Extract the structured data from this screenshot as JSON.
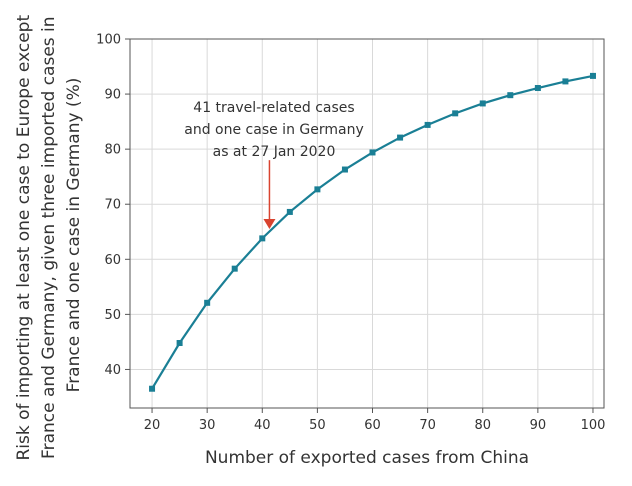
{
  "chart_data": {
    "type": "line",
    "title": "",
    "xlabel": "Number of exported cases from China",
    "ylabel_lines": [
      "Risk of importing at least one case to Europe except",
      "France and Germany, given three imported cases in",
      "France and one case in Germany (%)"
    ],
    "xlim": [
      16,
      102
    ],
    "ylim": [
      33,
      100
    ],
    "x_ticks": [
      20,
      30,
      40,
      50,
      60,
      70,
      80,
      90,
      100
    ],
    "y_ticks": [
      40,
      50,
      60,
      70,
      80,
      90,
      100
    ],
    "grid": true,
    "series": [
      {
        "color": "#1a7f95",
        "points": [
          [
            20,
            36.5
          ],
          [
            25,
            44.8
          ],
          [
            30,
            52.1
          ],
          [
            35,
            58.3
          ],
          [
            40,
            63.8
          ],
          [
            45,
            68.6
          ],
          [
            50,
            72.7
          ],
          [
            55,
            76.3
          ],
          [
            60,
            79.4
          ],
          [
            65,
            82.1
          ],
          [
            70,
            84.4
          ],
          [
            75,
            86.5
          ],
          [
            80,
            88.3
          ],
          [
            85,
            89.8
          ],
          [
            90,
            91.1
          ],
          [
            95,
            92.3
          ],
          [
            100,
            93.3
          ]
        ]
      }
    ],
    "annotation": {
      "lines": [
        "41 travel-related cases",
        "and one case in Germany",
        "as at 27 Jan 2020"
      ],
      "arrow_x": 41.3,
      "arrow_y_from": 78,
      "arrow_y_to": 65.5,
      "arrow_color": "#d9432f"
    }
  }
}
